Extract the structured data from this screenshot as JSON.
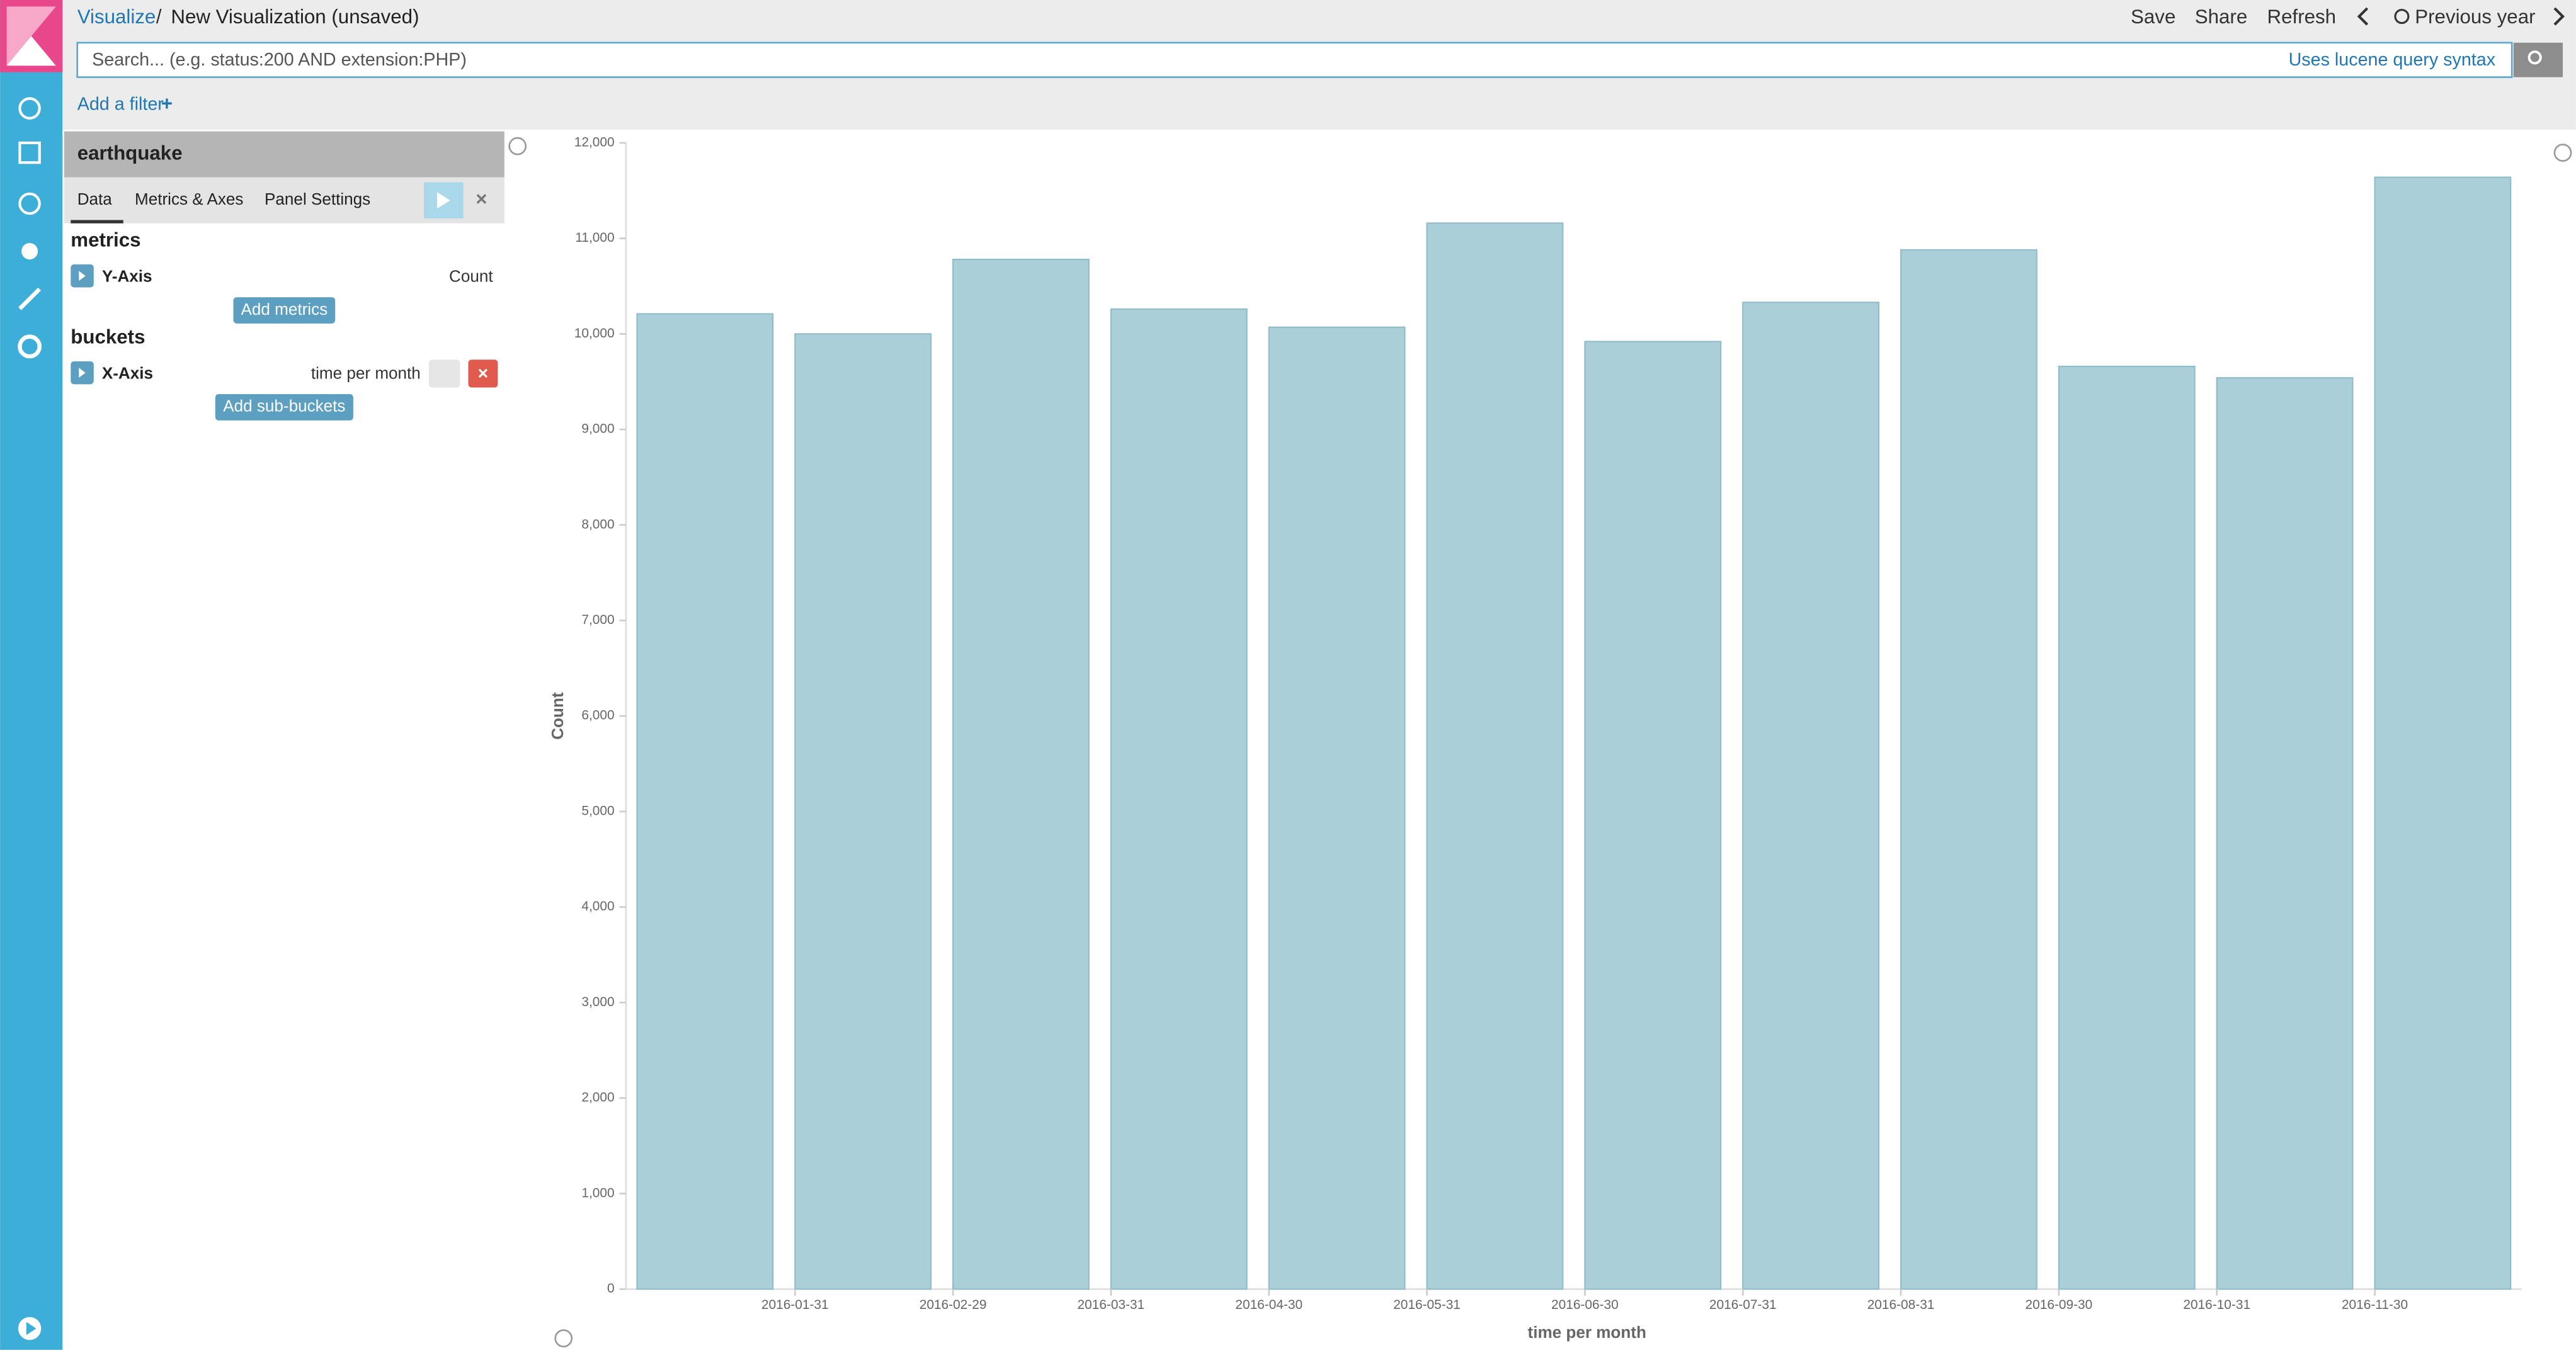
{
  "header": {
    "breadcrumb": [
      "Visualize",
      "New Visualization (unsaved)"
    ],
    "menu": [
      "Save",
      "Share",
      "Refresh"
    ],
    "time_range": "Previous year"
  },
  "search": {
    "placeholder": "Search... (e.g. status:200 AND extension:PHP)",
    "syntax_link": "Uses lucene query syntax",
    "add_filter": "Add a filter"
  },
  "sidebar": {
    "index": "earthquake",
    "tabs": [
      "Data",
      "Metrics & Axes",
      "Panel Settings"
    ],
    "metrics": {
      "title": "metrics",
      "agg": "Y-Axis",
      "type": "Count",
      "button": "Add metrics"
    },
    "buckets": {
      "title": "buckets",
      "agg": "X-Axis",
      "type": "time per month",
      "button": "Add sub-buckets"
    }
  },
  "chart_data": {
    "type": "bar",
    "x_label": "time per month",
    "y_label": "Count",
    "categories": [
      null,
      "2016-01-31",
      "2016-02-29",
      "2016-03-31",
      "2016-04-30",
      "2016-05-31",
      "2016-06-30",
      "2016-07-31",
      "2016-08-31",
      "2016-09-30",
      "2016-10-31",
      "2016-11-30"
    ],
    "values": [
      10210,
      10000,
      10780,
      10260,
      10070,
      11160,
      9920,
      10330,
      10880,
      9660,
      9540,
      11640
    ],
    "color": "#abcfd9",
    "ylim": [
      0,
      12000
    ],
    "yticks": [
      0,
      {
        "value": 1000,
        "label": "1,000"
      },
      {
        "value": 2000,
        "label": "2,000"
      },
      {
        "value": 3000,
        "label": "3,000"
      },
      {
        "value": 4000,
        "label": "4,000"
      },
      {
        "value": 5000,
        "label": "5,000"
      },
      {
        "value": 6000,
        "label": "6,000"
      },
      {
        "value": 7000,
        "label": "7,000"
      },
      {
        "value": 8000,
        "label": "8,000"
      },
      {
        "value": 9000,
        "label": "9,000"
      },
      {
        "value": 10000,
        "label": "10,000"
      },
      {
        "value": 11000,
        "label": "11,000"
      },
      {
        "value": 12000,
        "label": "12,000"
      }
    ]
  }
}
